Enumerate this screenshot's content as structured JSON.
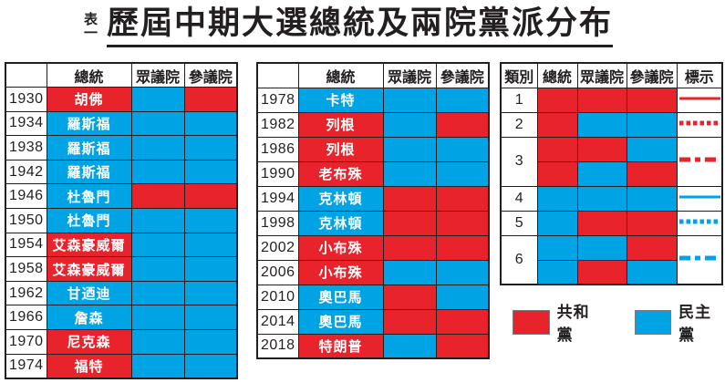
{
  "page": {
    "label_top": "表",
    "label_bottom": "一",
    "title": "歷屆中期大選總統及兩院黨派分布"
  },
  "colors": {
    "republican": "#e8232c",
    "democrat": "#00a4e4",
    "ink": "#231f20"
  },
  "party_names": {
    "R": "共和黨",
    "D": "民主黨"
  },
  "chart_data": [
    {
      "type": "table",
      "name": "early_elections",
      "headers": [
        "",
        "總統",
        "眾議院",
        "參議院"
      ],
      "rows": [
        {
          "year": "1930",
          "president": "胡佛",
          "president_party": "R",
          "house": "D",
          "senate": "R"
        },
        {
          "year": "1934",
          "president": "羅斯福",
          "president_party": "D",
          "house": "D",
          "senate": "D"
        },
        {
          "year": "1938",
          "president": "羅斯福",
          "president_party": "D",
          "house": "D",
          "senate": "D"
        },
        {
          "year": "1942",
          "president": "羅斯福",
          "president_party": "D",
          "house": "D",
          "senate": "D"
        },
        {
          "year": "1946",
          "president": "杜魯門",
          "president_party": "D",
          "house": "R",
          "senate": "R"
        },
        {
          "year": "1950",
          "president": "杜魯門",
          "president_party": "D",
          "house": "D",
          "senate": "D"
        },
        {
          "year": "1954",
          "president": "艾森豪威爾",
          "president_party": "R",
          "house": "D",
          "senate": "D"
        },
        {
          "year": "1958",
          "president": "艾森豪威爾",
          "president_party": "R",
          "house": "D",
          "senate": "D"
        },
        {
          "year": "1962",
          "president": "甘迺迪",
          "president_party": "D",
          "house": "D",
          "senate": "D"
        },
        {
          "year": "1966",
          "president": "詹森",
          "president_party": "D",
          "house": "D",
          "senate": "D"
        },
        {
          "year": "1970",
          "president": "尼克森",
          "president_party": "R",
          "house": "D",
          "senate": "D"
        },
        {
          "year": "1974",
          "president": "福特",
          "president_party": "R",
          "house": "D",
          "senate": "D"
        }
      ]
    },
    {
      "type": "table",
      "name": "late_elections",
      "headers": [
        "",
        "總統",
        "眾議院",
        "參議院"
      ],
      "rows": [
        {
          "year": "1978",
          "president": "卡特",
          "president_party": "D",
          "house": "D",
          "senate": "D"
        },
        {
          "year": "1982",
          "president": "列根",
          "president_party": "R",
          "house": "D",
          "senate": "R"
        },
        {
          "year": "1986",
          "president": "列根",
          "president_party": "R",
          "house": "D",
          "senate": "D"
        },
        {
          "year": "1990",
          "president": "老布殊",
          "president_party": "R",
          "house": "D",
          "senate": "D"
        },
        {
          "year": "1994",
          "president": "克林頓",
          "president_party": "D",
          "house": "R",
          "senate": "R"
        },
        {
          "year": "1998",
          "president": "克林頓",
          "president_party": "D",
          "house": "R",
          "senate": "R"
        },
        {
          "year": "2002",
          "president": "小布殊",
          "president_party": "R",
          "house": "R",
          "senate": "R"
        },
        {
          "year": "2006",
          "president": "小布殊",
          "president_party": "R",
          "house": "D",
          "senate": "D"
        },
        {
          "year": "2010",
          "president": "奧巴馬",
          "president_party": "D",
          "house": "R",
          "senate": "D"
        },
        {
          "year": "2014",
          "president": "奧巴馬",
          "president_party": "D",
          "house": "R",
          "senate": "R"
        },
        {
          "year": "2018",
          "president": "特朗普",
          "president_party": "R",
          "house": "D",
          "senate": "R"
        }
      ]
    },
    {
      "type": "table",
      "name": "categories",
      "headers": [
        "類別",
        "總統",
        "眾議院",
        "參議院",
        "標示"
      ],
      "rows": [
        {
          "label": "1",
          "combos": [
            [
              "R",
              "R",
              "R"
            ]
          ],
          "marker": {
            "party": "R",
            "style": "solid"
          }
        },
        {
          "label": "2",
          "combos": [
            [
              "R",
              "D",
              "D"
            ]
          ],
          "marker": {
            "party": "R",
            "style": "dashed"
          }
        },
        {
          "label": "3",
          "combos": [
            [
              "R",
              "R",
              "D"
            ],
            [
              "R",
              "D",
              "R"
            ]
          ],
          "marker": {
            "party": "R",
            "style": "dash-dot"
          }
        },
        {
          "label": "4",
          "combos": [
            [
              "D",
              "D",
              "D"
            ]
          ],
          "marker": {
            "party": "D",
            "style": "solid"
          }
        },
        {
          "label": "5",
          "combos": [
            [
              "D",
              "R",
              "R"
            ]
          ],
          "marker": {
            "party": "D",
            "style": "dashed"
          }
        },
        {
          "label": "6",
          "combos": [
            [
              "D",
              "D",
              "R"
            ],
            [
              "D",
              "R",
              "D"
            ]
          ],
          "marker": {
            "party": "D",
            "style": "dash-dot"
          }
        }
      ]
    }
  ],
  "legend": {
    "items": [
      {
        "label": "共和黨",
        "party": "R"
      },
      {
        "label": "民主黨",
        "party": "D"
      }
    ]
  }
}
